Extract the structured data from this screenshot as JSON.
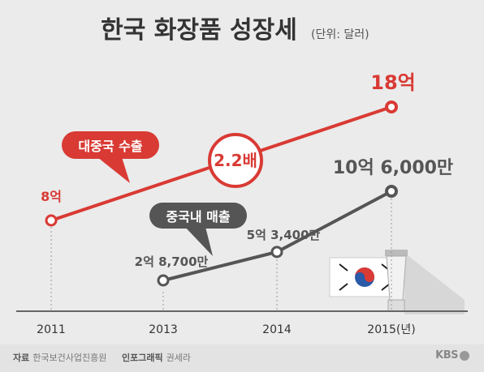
{
  "chart_data": {
    "type": "line",
    "title": "한국 화장품 성장세",
    "subtitle": "(단위: 달러)",
    "categories": [
      "2011",
      "2013",
      "2014",
      "2015(년)"
    ],
    "x": [
      2011,
      2013,
      2014,
      2015
    ],
    "series": [
      {
        "name": "대중국 수출",
        "color": "#d93a34",
        "points": [
          {
            "x": 2011,
            "y": 800000000,
            "label": "8억"
          },
          {
            "x": 2015,
            "y": 1800000000,
            "label": "18억"
          }
        ]
      },
      {
        "name": "중국내 매출",
        "color": "#555555",
        "points": [
          {
            "x": 2013,
            "y": 287000000,
            "label": "2억 8,700만"
          },
          {
            "x": 2014,
            "y": 534000000,
            "label": "5억 3,400만"
          },
          {
            "x": 2015,
            "y": 1060000000,
            "label": "10억 6,000만"
          }
        ]
      }
    ],
    "annotation": "2.2배",
    "grid": false
  },
  "credits": {
    "source_label": "자료",
    "source": "한국보건사업진흥원",
    "author_label": "인포그래픽",
    "author": "권세라"
  },
  "logo": "KBS",
  "colors": {
    "red": "#d93a34",
    "dark": "#555555",
    "axis": "#666666"
  }
}
